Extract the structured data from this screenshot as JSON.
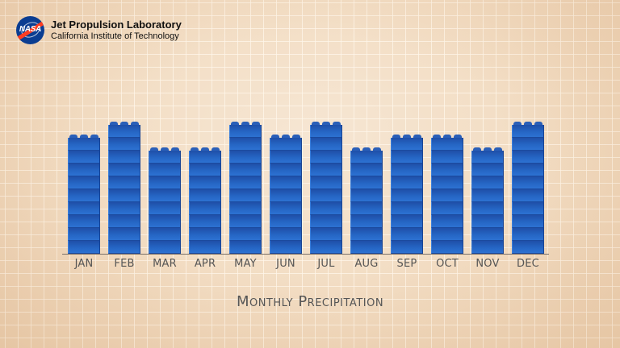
{
  "header": {
    "logo_text": "NASA",
    "title": "Jet Propulsion Laboratory",
    "subtitle": "California Institute of Technology"
  },
  "colors": {
    "bar": "#2565c4",
    "background": "#f2dcc2",
    "text": "#555555"
  },
  "chart_data": {
    "type": "bar",
    "title": "Monthly Precipitation",
    "xlabel": "",
    "ylabel": "",
    "unit": "bricks",
    "categories": [
      "JAN",
      "FEB",
      "MAR",
      "APR",
      "MAY",
      "JUN",
      "JUL",
      "AUG",
      "SEP",
      "OCT",
      "NOV",
      "DEC"
    ],
    "values": [
      9,
      10,
      8,
      8,
      10,
      9,
      10,
      8,
      9,
      9,
      8,
      10
    ],
    "ylim": [
      0,
      10
    ],
    "grid": true,
    "legend": null,
    "style": "stacked toy-brick bars"
  }
}
